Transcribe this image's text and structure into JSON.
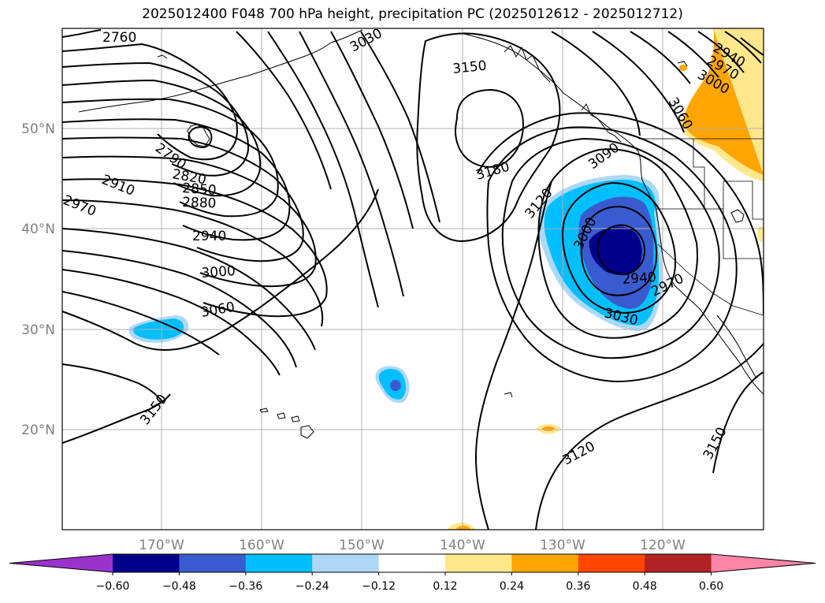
{
  "title": "2025012400 F048 700 hPa height, precipitation PC (2025012612 - 2025012712)",
  "map": {
    "lon_range": [
      -180,
      -110
    ],
    "lat_range": [
      10,
      60
    ],
    "lon_ticks": [
      {
        "lon": -170,
        "label": "170°W"
      },
      {
        "lon": -160,
        "label": "160°W"
      },
      {
        "lon": -150,
        "label": "150°W"
      },
      {
        "lon": -140,
        "label": "140°W"
      },
      {
        "lon": -130,
        "label": "130°W"
      },
      {
        "lon": -120,
        "label": "120°W"
      }
    ],
    "lat_ticks": [
      {
        "lat": 50,
        "label": "50°N"
      },
      {
        "lat": 40,
        "label": "40°N"
      },
      {
        "lat": 30,
        "label": "30°N"
      },
      {
        "lat": 20,
        "label": "20°N"
      }
    ],
    "contour_labels": [
      "2760",
      "3030",
      "3150",
      "2940",
      "2970",
      "3000",
      "3060",
      "2790",
      "2820",
      "2850",
      "2880",
      "2910",
      "2970",
      "2940",
      "3000",
      "3060",
      "3180",
      "3090",
      "3120",
      "3000",
      "2940",
      "2970",
      "3030",
      "3150",
      "3120",
      "3150"
    ]
  },
  "colorbar": {
    "colors": [
      "#9933cc",
      "#00008b",
      "#3a5bcf",
      "#00bfff",
      "#add8f5",
      "#ffffff",
      "#ffe88c",
      "#ffa500",
      "#ff4500",
      "#b22222",
      "#ff85a8"
    ],
    "tick_labels": [
      "−0.60",
      "−0.48",
      "−0.36",
      "−0.24",
      "−0.12",
      "0.12",
      "0.24",
      "0.36",
      "0.48",
      "0.60"
    ]
  }
}
